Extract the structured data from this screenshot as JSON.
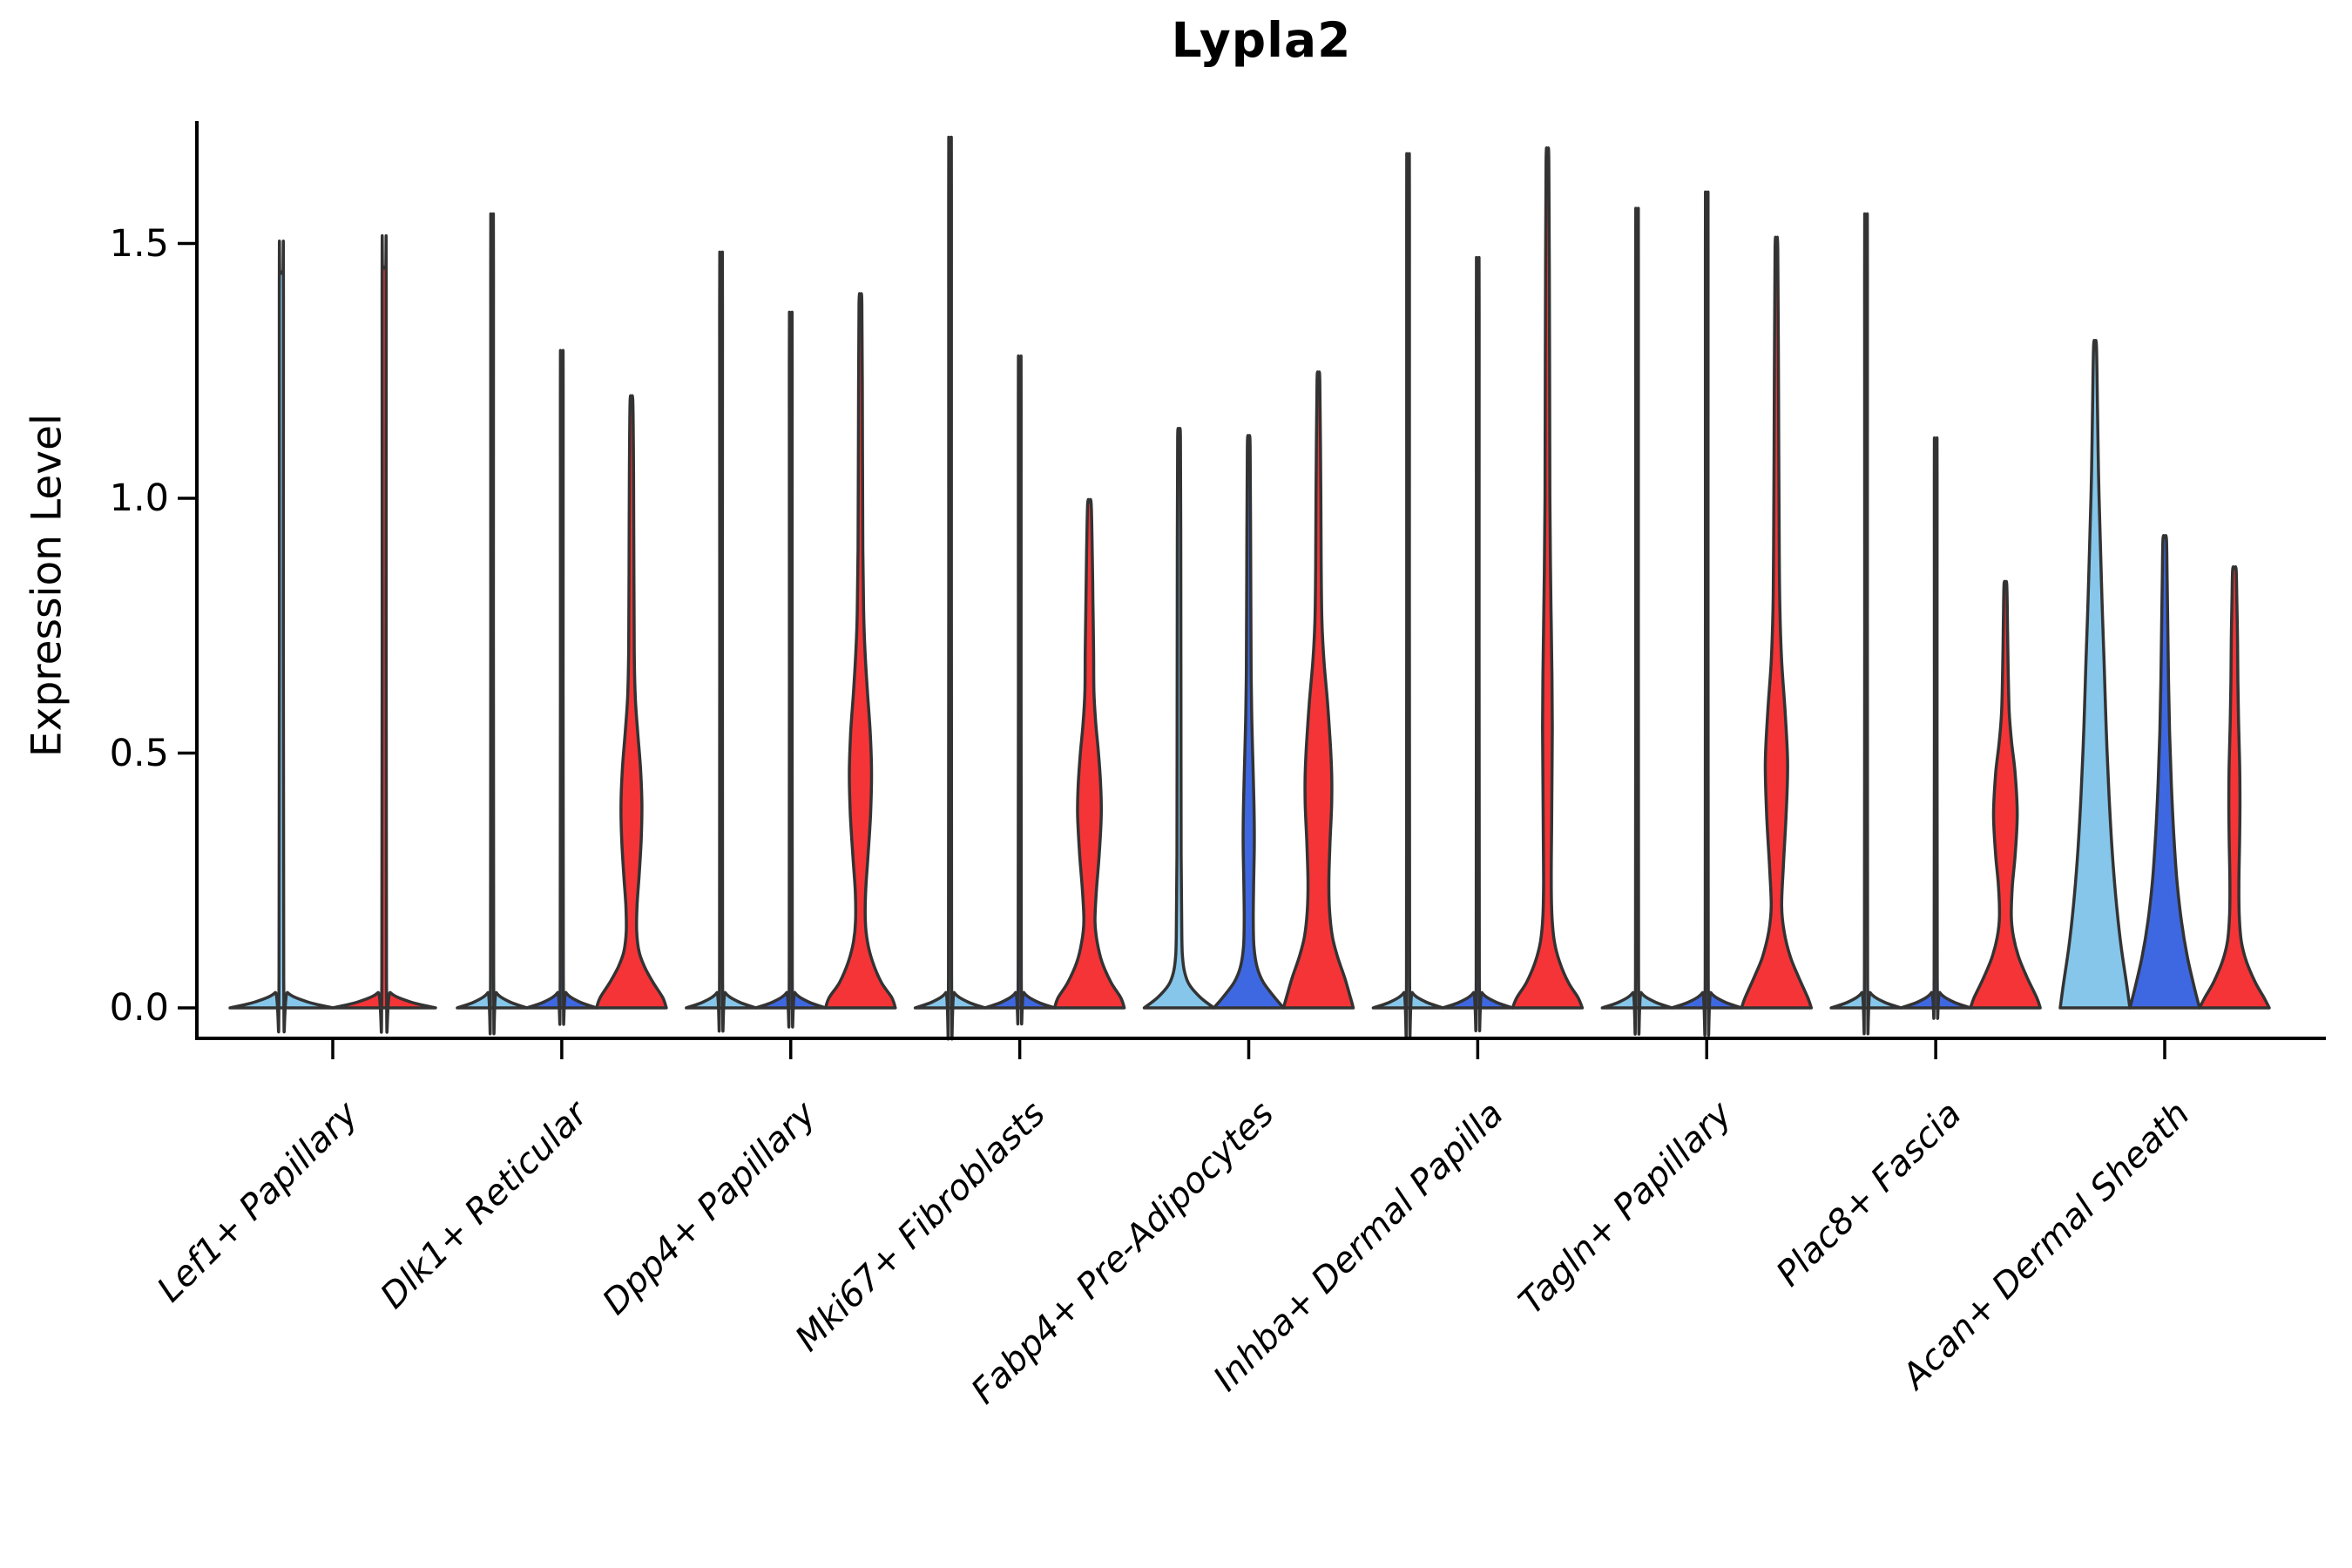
{
  "chart_data": {
    "type": "violin",
    "title": "Lypla2",
    "ylabel": "Expression Level",
    "xlabel": "",
    "grid": false,
    "legend": "none",
    "ytick_labels": [
      "0.0",
      "0.5",
      "1.0",
      "1.5"
    ],
    "ytick_values": [
      0.0,
      0.5,
      1.0,
      1.5
    ],
    "ylim": [
      -0.06,
      1.74
    ],
    "x_tick_label_rotation_deg": 45,
    "x_tick_label_style": "italic",
    "categories": [
      "Lef1+ Papillary",
      "Dlk1+ Reticular",
      "Dpp4+ Papillary",
      "Mki67+ Fibroblasts",
      "Fabp4+ Pre-Adipocytes",
      "Inhba+ Dermal Papilla",
      "Tagln+ Papillary",
      "Plac8+ Fascia",
      "Acan+ Dermal Sheath"
    ],
    "split_palette": {
      "skyblue": "#85C6EA",
      "royalblue": "#3E68E1",
      "red": "#F53437"
    },
    "outline_color": "#333333",
    "background_color": "#ffffff",
    "groups": [
      {
        "category": "Lef1+ Papillary",
        "violins": [
          {
            "color": "skyblue",
            "max": 1.44,
            "offset": -59,
            "half_width": 59,
            "shape": "spike"
          },
          {
            "color": "red",
            "max": 1.45,
            "offset": 59,
            "half_width": 59,
            "shape": "spike"
          }
        ]
      },
      {
        "category": "Dlk1+ Reticular",
        "violins": [
          {
            "color": "skyblue",
            "max": 1.49,
            "offset": -80,
            "half_width": 40,
            "shape": "spike"
          },
          {
            "color": "royalblue",
            "max": 1.24,
            "offset": 0,
            "half_width": 40,
            "shape": "spike"
          },
          {
            "color": "red",
            "max": 1.19,
            "offset": 80,
            "half_width": 40,
            "shape": "body",
            "profile": [
              [
                0,
                1
              ],
              [
                0.02,
                0.9
              ],
              [
                0.05,
                0.62
              ],
              [
                0.08,
                0.38
              ],
              [
                0.11,
                0.22
              ],
              [
                0.15,
                0.15
              ],
              [
                0.2,
                0.16
              ],
              [
                0.26,
                0.22
              ],
              [
                0.33,
                0.28
              ],
              [
                0.4,
                0.3
              ],
              [
                0.47,
                0.26
              ],
              [
                0.54,
                0.18
              ],
              [
                0.61,
                0.11
              ],
              [
                0.7,
                0.08
              ],
              [
                0.85,
                0.07
              ],
              [
                1.05,
                0.06
              ],
              [
                1.19,
                0.04
              ]
            ]
          }
        ]
      },
      {
        "category": "Dpp4+ Papillary",
        "violins": [
          {
            "color": "skyblue",
            "max": 1.42,
            "offset": -80,
            "half_width": 40,
            "shape": "spike"
          },
          {
            "color": "royalblue",
            "max": 1.31,
            "offset": 0,
            "half_width": 40,
            "shape": "spike"
          },
          {
            "color": "red",
            "max": 1.38,
            "offset": 80,
            "half_width": 40,
            "shape": "body",
            "profile": [
              [
                0,
                1
              ],
              [
                0.02,
                0.9
              ],
              [
                0.05,
                0.6
              ],
              [
                0.09,
                0.35
              ],
              [
                0.13,
                0.2
              ],
              [
                0.17,
                0.14
              ],
              [
                0.23,
                0.15
              ],
              [
                0.3,
                0.22
              ],
              [
                0.38,
                0.29
              ],
              [
                0.46,
                0.32
              ],
              [
                0.54,
                0.28
              ],
              [
                0.62,
                0.2
              ],
              [
                0.7,
                0.13
              ],
              [
                0.78,
                0.09
              ],
              [
                0.9,
                0.07
              ],
              [
                1.1,
                0.06
              ],
              [
                1.38,
                0.04
              ]
            ]
          }
        ]
      },
      {
        "category": "Mki67+ Fibroblasts",
        "violins": [
          {
            "color": "skyblue",
            "max": 1.63,
            "offset": -80,
            "half_width": 40,
            "shape": "spike"
          },
          {
            "color": "royalblue",
            "max": 1.23,
            "offset": 0,
            "half_width": 40,
            "shape": "spike"
          },
          {
            "color": "red",
            "max": 0.99,
            "offset": 80,
            "half_width": 40,
            "shape": "body",
            "profile": [
              [
                0,
                1
              ],
              [
                0.02,
                0.9
              ],
              [
                0.05,
                0.62
              ],
              [
                0.09,
                0.36
              ],
              [
                0.13,
                0.22
              ],
              [
                0.17,
                0.16
              ],
              [
                0.23,
                0.2
              ],
              [
                0.3,
                0.28
              ],
              [
                0.38,
                0.34
              ],
              [
                0.44,
                0.32
              ],
              [
                0.5,
                0.26
              ],
              [
                0.56,
                0.18
              ],
              [
                0.62,
                0.13
              ],
              [
                0.7,
                0.12
              ],
              [
                0.8,
                0.1
              ],
              [
                0.9,
                0.08
              ],
              [
                0.99,
                0.05
              ]
            ]
          }
        ]
      },
      {
        "category": "Fabp4+ Pre-Adipocytes",
        "violins": [
          {
            "color": "skyblue",
            "max": 1.12,
            "offset": -80,
            "half_width": 40,
            "shape": "body",
            "profile": [
              [
                0,
                1
              ],
              [
                0.02,
                0.62
              ],
              [
                0.045,
                0.3
              ],
              [
                0.07,
                0.16
              ],
              [
                0.1,
                0.1
              ],
              [
                0.14,
                0.08
              ],
              [
                0.3,
                0.06
              ],
              [
                0.6,
                0.055
              ],
              [
                0.9,
                0.05
              ],
              [
                1.12,
                0.04
              ]
            ]
          },
          {
            "color": "royalblue",
            "max": 1.1,
            "offset": 0,
            "half_width": 40,
            "shape": "body",
            "profile": [
              [
                0,
                1
              ],
              [
                0.02,
                0.75
              ],
              [
                0.05,
                0.42
              ],
              [
                0.08,
                0.24
              ],
              [
                0.12,
                0.15
              ],
              [
                0.17,
                0.13
              ],
              [
                0.24,
                0.14
              ],
              [
                0.32,
                0.16
              ],
              [
                0.4,
                0.15
              ],
              [
                0.48,
                0.12
              ],
              [
                0.56,
                0.09
              ],
              [
                0.65,
                0.07
              ],
              [
                0.8,
                0.06
              ],
              [
                1.1,
                0.04
              ]
            ]
          },
          {
            "color": "red",
            "max": 1.23,
            "offset": 80,
            "half_width": 40,
            "shape": "body",
            "profile": [
              [
                0,
                1
              ],
              [
                0.02,
                0.92
              ],
              [
                0.06,
                0.75
              ],
              [
                0.1,
                0.55
              ],
              [
                0.14,
                0.4
              ],
              [
                0.19,
                0.32
              ],
              [
                0.25,
                0.3
              ],
              [
                0.32,
                0.33
              ],
              [
                0.4,
                0.38
              ],
              [
                0.46,
                0.38
              ],
              [
                0.52,
                0.34
              ],
              [
                0.6,
                0.26
              ],
              [
                0.68,
                0.16
              ],
              [
                0.76,
                0.1
              ],
              [
                0.86,
                0.08
              ],
              [
                1.0,
                0.07
              ],
              [
                1.23,
                0.04
              ]
            ]
          }
        ]
      },
      {
        "category": "Inhba+ Dermal Papilla",
        "violins": [
          {
            "color": "skyblue",
            "max": 1.6,
            "offset": -80,
            "half_width": 40,
            "shape": "spike"
          },
          {
            "color": "royalblue",
            "max": 1.41,
            "offset": 0,
            "half_width": 40,
            "shape": "spike"
          },
          {
            "color": "red",
            "max": 1.66,
            "offset": 80,
            "half_width": 40,
            "shape": "body",
            "profile": [
              [
                0,
                1
              ],
              [
                0.02,
                0.88
              ],
              [
                0.05,
                0.6
              ],
              [
                0.09,
                0.35
              ],
              [
                0.13,
                0.2
              ],
              [
                0.18,
                0.13
              ],
              [
                0.25,
                0.11
              ],
              [
                0.35,
                0.12
              ],
              [
                0.45,
                0.13
              ],
              [
                0.55,
                0.14
              ],
              [
                0.65,
                0.13
              ],
              [
                0.75,
                0.11
              ],
              [
                0.85,
                0.09
              ],
              [
                1.0,
                0.07
              ],
              [
                1.3,
                0.06
              ],
              [
                1.66,
                0.04
              ]
            ]
          }
        ]
      },
      {
        "category": "Tagln+ Papillary",
        "violins": [
          {
            "color": "skyblue",
            "max": 1.5,
            "offset": -80,
            "half_width": 40,
            "shape": "spike"
          },
          {
            "color": "royalblue",
            "max": 1.53,
            "offset": 0,
            "half_width": 40,
            "shape": "spike"
          },
          {
            "color": "red",
            "max": 1.49,
            "offset": 80,
            "half_width": 40,
            "shape": "body",
            "profile": [
              [
                0,
                1
              ],
              [
                0.02,
                0.9
              ],
              [
                0.06,
                0.64
              ],
              [
                0.1,
                0.4
              ],
              [
                0.15,
                0.22
              ],
              [
                0.2,
                0.15
              ],
              [
                0.28,
                0.2
              ],
              [
                0.38,
                0.28
              ],
              [
                0.48,
                0.32
              ],
              [
                0.58,
                0.25
              ],
              [
                0.68,
                0.15
              ],
              [
                0.78,
                0.1
              ],
              [
                0.9,
                0.08
              ],
              [
                1.2,
                0.06
              ],
              [
                1.49,
                0.04
              ]
            ]
          }
        ]
      },
      {
        "category": "Plac8+ Fascia",
        "violins": [
          {
            "color": "skyblue",
            "max": 1.49,
            "offset": -80,
            "half_width": 40,
            "shape": "spike"
          },
          {
            "color": "royalblue",
            "max": 1.08,
            "offset": 0,
            "half_width": 40,
            "shape": "spike"
          },
          {
            "color": "red",
            "max": 0.83,
            "offset": 80,
            "half_width": 40,
            "shape": "body",
            "profile": [
              [
                0,
                1
              ],
              [
                0.02,
                0.9
              ],
              [
                0.06,
                0.62
              ],
              [
                0.1,
                0.38
              ],
              [
                0.14,
                0.23
              ],
              [
                0.18,
                0.17
              ],
              [
                0.24,
                0.2
              ],
              [
                0.3,
                0.28
              ],
              [
                0.38,
                0.34
              ],
              [
                0.46,
                0.28
              ],
              [
                0.52,
                0.18
              ],
              [
                0.58,
                0.11
              ],
              [
                0.66,
                0.08
              ],
              [
                0.75,
                0.06
              ],
              [
                0.83,
                0.04
              ]
            ]
          }
        ]
      },
      {
        "category": "Acan+ Dermal Sheath",
        "violins": [
          {
            "color": "skyblue",
            "max": 1.3,
            "offset": -80,
            "half_width": 40,
            "shape": "body",
            "profile": [
              [
                0,
                1
              ],
              [
                0.05,
                0.9
              ],
              [
                0.12,
                0.75
              ],
              [
                0.2,
                0.62
              ],
              [
                0.3,
                0.5
              ],
              [
                0.42,
                0.4
              ],
              [
                0.55,
                0.32
              ],
              [
                0.68,
                0.26
              ],
              [
                0.8,
                0.2
              ],
              [
                0.92,
                0.15
              ],
              [
                1.05,
                0.1
              ],
              [
                1.18,
                0.07
              ],
              [
                1.3,
                0.04
              ]
            ]
          },
          {
            "color": "royalblue",
            "max": 0.92,
            "offset": 0,
            "half_width": 40,
            "shape": "body",
            "profile": [
              [
                0,
                1
              ],
              [
                0.04,
                0.85
              ],
              [
                0.1,
                0.65
              ],
              [
                0.17,
                0.48
              ],
              [
                0.25,
                0.35
              ],
              [
                0.34,
                0.26
              ],
              [
                0.44,
                0.19
              ],
              [
                0.54,
                0.14
              ],
              [
                0.64,
                0.11
              ],
              [
                0.74,
                0.09
              ],
              [
                0.84,
                0.07
              ],
              [
                0.92,
                0.05
              ]
            ]
          },
          {
            "color": "red",
            "max": 0.86,
            "offset": 80,
            "half_width": 40,
            "shape": "body",
            "profile": [
              [
                0,
                1
              ],
              [
                0.02,
                0.85
              ],
              [
                0.05,
                0.6
              ],
              [
                0.09,
                0.35
              ],
              [
                0.13,
                0.2
              ],
              [
                0.18,
                0.14
              ],
              [
                0.25,
                0.13
              ],
              [
                0.33,
                0.15
              ],
              [
                0.4,
                0.16
              ],
              [
                0.48,
                0.15
              ],
              [
                0.56,
                0.12
              ],
              [
                0.64,
                0.1
              ],
              [
                0.72,
                0.09
              ],
              [
                0.8,
                0.07
              ],
              [
                0.86,
                0.05
              ]
            ]
          }
        ]
      }
    ]
  }
}
